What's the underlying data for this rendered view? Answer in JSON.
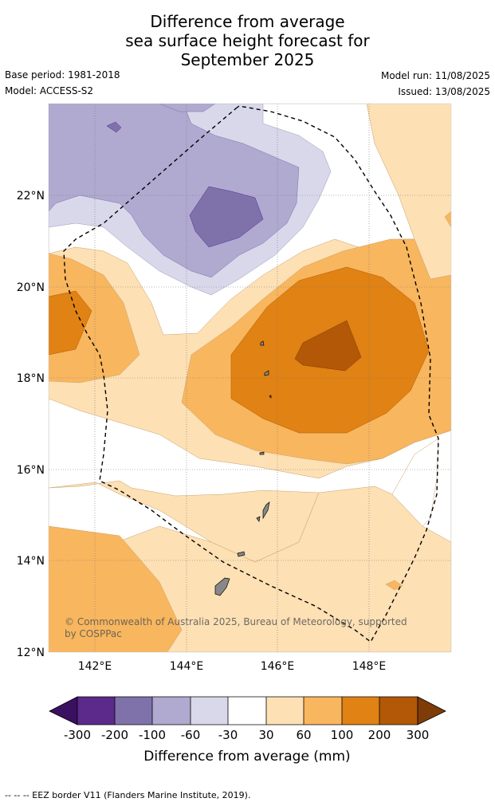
{
  "title": {
    "line1": "Difference from average",
    "line2": "sea surface height forecast for",
    "line3": "September 2025"
  },
  "meta": {
    "base_period": "Base period: 1981-2018",
    "model": "Model: ACCESS-S2",
    "model_run": "Model run: 11/08/2025",
    "issued": "Issued: 13/08/2025"
  },
  "map": {
    "lat_labels": [
      "22°N",
      "20°N",
      "18°N",
      "16°N",
      "14°N",
      "12°N"
    ],
    "lon_labels": [
      "142°E",
      "144°E",
      "146°E",
      "148°E"
    ],
    "copyright_line1": "© Commonwealth of Australia 2025, Bureau of Meteorology, supported",
    "copyright_line2": "by COSPPac"
  },
  "colorbar": {
    "ticks": [
      "-300",
      "-200",
      "-100",
      "-60",
      "-30",
      "30",
      "60",
      "100",
      "200",
      "300"
    ],
    "colors": [
      "#3a1060",
      "#5b2a8a",
      "#7f72ab",
      "#b0a9d0",
      "#d8d8ea",
      "#ffffff",
      "#fde0b4",
      "#f8b65e",
      "#e08214",
      "#b35806",
      "#7f3b08"
    ],
    "title": "Difference from average (mm)"
  },
  "footnote": "--  --  -- EEZ border V11 (Flanders Marine Institute, 2019)."
}
